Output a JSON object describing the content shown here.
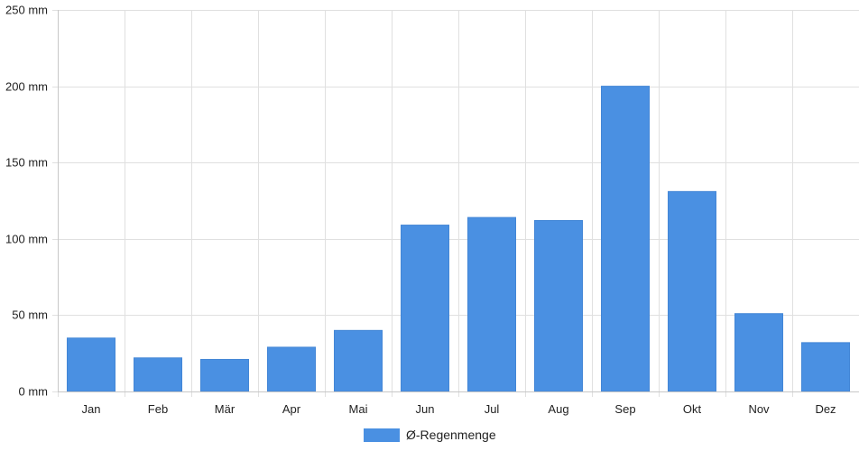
{
  "chart_data": {
    "type": "bar",
    "categories": [
      "Jan",
      "Feb",
      "Mär",
      "Apr",
      "Mai",
      "Jun",
      "Jul",
      "Aug",
      "Sep",
      "Okt",
      "Nov",
      "Dez"
    ],
    "series": [
      {
        "name": "Ø-Regenmenge",
        "values": [
          35,
          22,
          21,
          29,
          40,
          109,
          114,
          112,
          200,
          131,
          51,
          32
        ],
        "color": "#4a90e2"
      }
    ],
    "title": "",
    "xlabel": "",
    "ylabel": "",
    "ylim": [
      0,
      250
    ],
    "yticks": [
      0,
      50,
      100,
      150,
      200,
      250
    ],
    "ytick_labels": [
      "0 mm",
      "50 mm",
      "100 mm",
      "150 mm",
      "200 mm",
      "250 mm"
    ],
    "grid": true,
    "legend_position": "bottom"
  }
}
